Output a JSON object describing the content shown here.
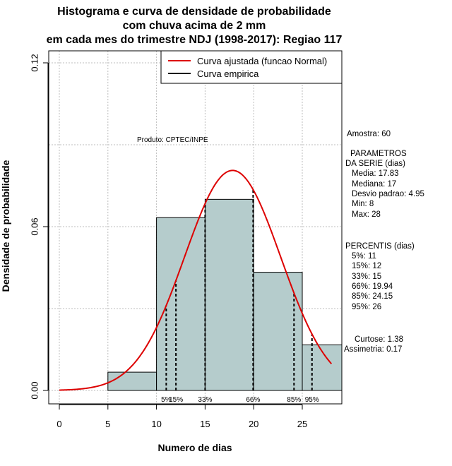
{
  "chart_data": {
    "type": "bar",
    "title_lines": [
      "Histograma e curva de densidade de probabilidade",
      "com chuva acima de 2 mm",
      "em cada mes do trimestre NDJ (1998-2017): Regiao 117"
    ],
    "xlabel": "Numero de dias",
    "ylabel": "Densidade de probabilidade",
    "xlim": [
      -1,
      29
    ],
    "ylim": [
      0,
      0.12
    ],
    "x_ticks": [
      "0",
      "5",
      "10",
      "15",
      "20",
      "25"
    ],
    "y_ticks": [
      "0.00",
      "0.06",
      "0.12"
    ],
    "grid": true,
    "bins": [
      {
        "start": 5,
        "end": 10,
        "density": 0.0067
      },
      {
        "start": 10,
        "end": 15,
        "density": 0.0633
      },
      {
        "start": 15,
        "end": 20,
        "density": 0.07
      },
      {
        "start": 20,
        "end": 25,
        "density": 0.0433
      },
      {
        "start": 25,
        "end": 30,
        "density": 0.0167
      }
    ],
    "normal_fit": {
      "mean": 17.83,
      "sd": 4.95,
      "x_range": [
        0,
        28
      ],
      "color": "#dd0000"
    },
    "bar_color": "#b5cccc",
    "legend": [
      {
        "label": "Curva ajustada (funcao Normal)",
        "color": "#dd0000"
      },
      {
        "label": "Curva empirica",
        "color": "#000000"
      }
    ],
    "legend_position": "top-right",
    "annotation": "Produto: CPTEC/INPE",
    "percentile_markers": [
      {
        "label": "5%",
        "value": 11
      },
      {
        "label": "15%",
        "value": 12
      },
      {
        "label": "33%",
        "value": 15
      },
      {
        "label": "66%",
        "value": 19.94
      },
      {
        "label": "85%",
        "value": 24.15
      },
      {
        "label": "95%",
        "value": 26
      }
    ],
    "stats_panel": {
      "amostra": "Amostra: 60",
      "param_title_1": "PARAMETROS",
      "param_title_2": "DA SERIE (dias)",
      "params": [
        "Media: 17.83",
        "Mediana: 17",
        "Desvio padrao: 4.95",
        "Min: 8",
        "Max: 28"
      ],
      "pct_title": "PERCENTIS (dias)",
      "percentis": [
        "5%: 11",
        "15%: 12",
        "33%: 15",
        "66%: 19.94",
        "85%: 24.15",
        "95%: 26"
      ],
      "curtose": "Curtose: 1.38",
      "assimetria": "Assimetria: 0.17"
    }
  }
}
